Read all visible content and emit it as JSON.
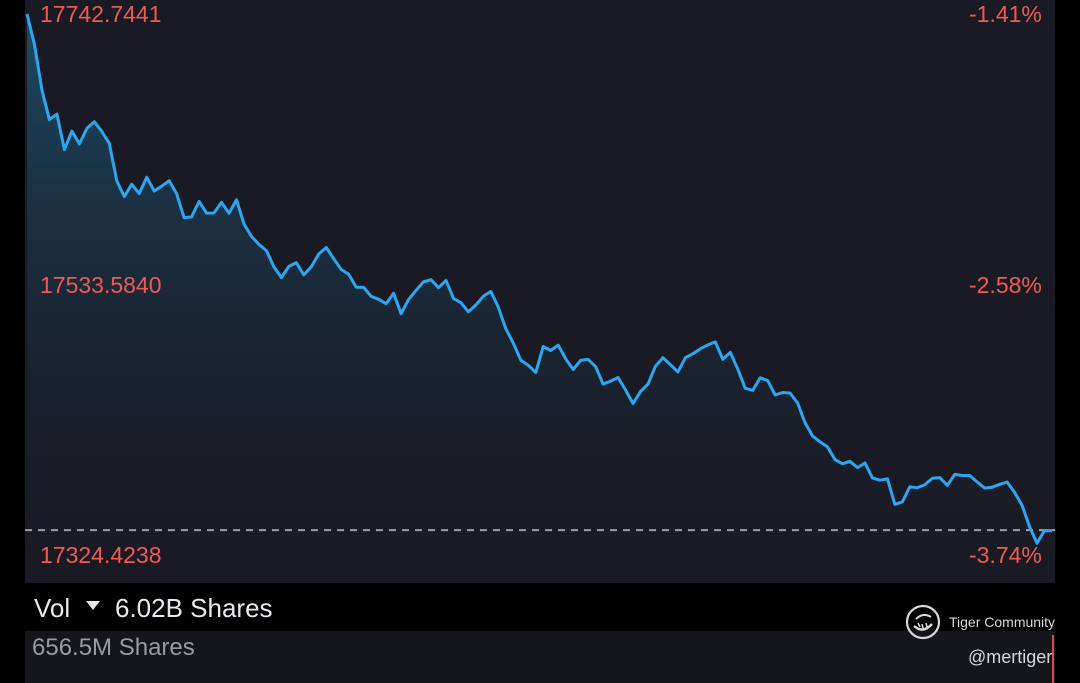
{
  "colors": {
    "line": "#2aa7f0",
    "label": "#f05a55",
    "panel": "#1a1a24",
    "baseline": "#9aa0aa"
  },
  "chart_data": {
    "type": "area",
    "price_labels": [
      "17742.7441",
      "17533.5840",
      "17324.4238"
    ],
    "percent_labels": [
      "-1.41%",
      "-2.58%",
      "-3.74%"
    ],
    "ylim": [
      17324.4238,
      17742.7441
    ],
    "baseline_value": 17342.9,
    "series": [
      {
        "values": [
          17742.0,
          17718.3,
          17682.9,
          17660.3,
          17664.6,
          17637.1,
          17651.4,
          17641.5,
          17653.6,
          17658.7,
          17651.1,
          17641.9,
          17612.9,
          17600.8,
          17610.4,
          17603.1,
          17615.8,
          17605.1,
          17608.8,
          17613.1,
          17603.0,
          17584.4,
          17585.1,
          17597.1,
          17588.0,
          17588.1,
          17596.4,
          17587.9,
          17598.3,
          17579.5,
          17569.9,
          17563.9,
          17559.0,
          17546.4,
          17538.2,
          17546.8,
          17549.7,
          17540.2,
          17546.5,
          17556.5,
          17561.4,
          17552.6,
          17544.4,
          17540.7,
          17530.8,
          17530.6,
          17523.6,
          17521.4,
          17518.0,
          17526.0,
          17510.2,
          17521.3,
          17528.3,
          17534.9,
          17536.5,
          17530.3,
          17536.0,
          17522.1,
          17518.7,
          17511.7,
          17517.0,
          17523.8,
          17527.5,
          17515.0,
          17498.6,
          17487.6,
          17474.3,
          17470.3,
          17464.8,
          17484.9,
          17481.8,
          17485.9,
          17475.3,
          17467.1,
          17474.1,
          17474.9,
          17469.3,
          17455.8,
          17458.1,
          17460.9,
          17451.3,
          17440.8,
          17450.1,
          17455.8,
          17469.7,
          17476.2,
          17470.9,
          17465.2,
          17476.2,
          17479.3,
          17483.2,
          17486.1,
          17488.4,
          17474.9,
          17480.4,
          17467.3,
          17452.6,
          17450.9,
          17460.7,
          17458.5,
          17447.4,
          17449.3,
          17448.8,
          17441.2,
          17425.8,
          17415.6,
          17411.2,
          17407.2,
          17397.4,
          17394.2,
          17396.1,
          17391.2,
          17394.8,
          17383.3,
          17381.5,
          17382.6,
          17362.8,
          17364.8,
          17376.4,
          17375.6,
          17378.0,
          17383.0,
          17383.5,
          17377.5,
          17386.0,
          17385.1,
          17385.1,
          17380.1,
          17375.4,
          17376.0,
          17378.3,
          17380.1,
          17372.0,
          17362.0,
          17345.4,
          17332.7,
          17342.6,
          17342.4
        ]
      }
    ],
    "volume_label": "Vol",
    "volume_total": "6.02B Shares",
    "volume_current": "656.5M Shares"
  },
  "watermark": {
    "brand": "Tiger Community",
    "user": "@mertiger"
  }
}
